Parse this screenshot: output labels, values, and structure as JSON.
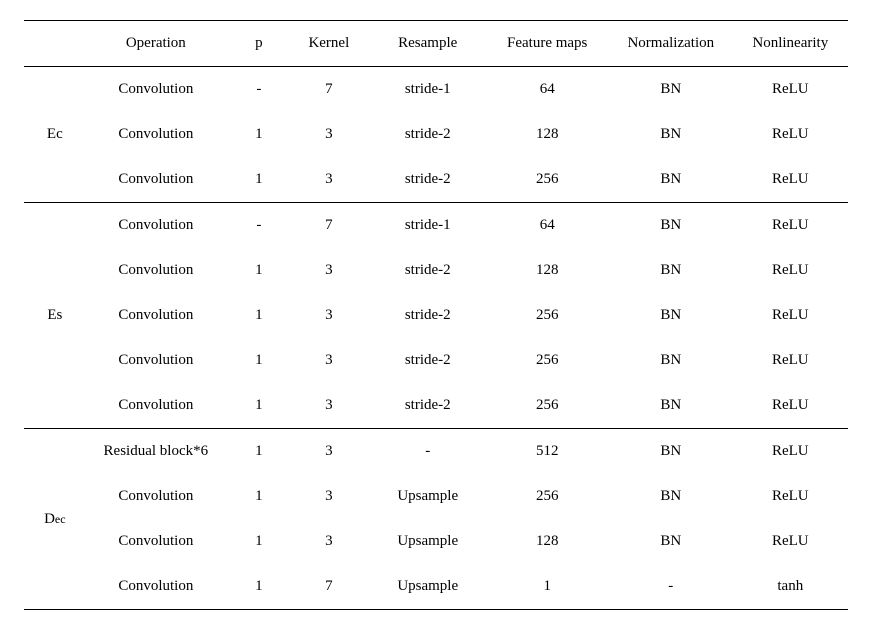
{
  "table": {
    "columns": [
      "",
      "Operation",
      "p",
      "Kernel",
      "Resample",
      "Feature maps",
      "Normalization",
      "Nonlinearity"
    ],
    "column_widths_pct": [
      7,
      18,
      7,
      10,
      14,
      15,
      15,
      14
    ],
    "font_family": "Times New Roman",
    "font_size_pt": 15,
    "text_color": "#000000",
    "background_color": "#ffffff",
    "border_color": "#000000",
    "sections": [
      {
        "label_plain": "Ec",
        "rows": [
          [
            "Convolution",
            "-",
            "7",
            "stride-1",
            "64",
            "BN",
            "ReLU"
          ],
          [
            "Convolution",
            "1",
            "3",
            "stride-2",
            "128",
            "BN",
            "ReLU"
          ],
          [
            "Convolution",
            "1",
            "3",
            "stride-2",
            "256",
            "BN",
            "ReLU"
          ]
        ]
      },
      {
        "label_plain": "Es",
        "rows": [
          [
            "Convolution",
            "-",
            "7",
            "stride-1",
            "64",
            "BN",
            "ReLU"
          ],
          [
            "Convolution",
            "1",
            "3",
            "stride-2",
            "128",
            "BN",
            "ReLU"
          ],
          [
            "Convolution",
            "1",
            "3",
            "stride-2",
            "256",
            "BN",
            "ReLU"
          ],
          [
            "Convolution",
            "1",
            "3",
            "stride-2",
            "256",
            "BN",
            "ReLU"
          ],
          [
            "Convolution",
            "1",
            "3",
            "stride-2",
            "256",
            "BN",
            "ReLU"
          ]
        ]
      },
      {
        "label_plain": "Dec",
        "rows": [
          [
            "Residual block*6",
            "1",
            "3",
            "-",
            "512",
            "BN",
            "ReLU"
          ],
          [
            "Convolution",
            "1",
            "3",
            "Upsample",
            "256",
            "BN",
            "ReLU"
          ],
          [
            "Convolution",
            "1",
            "3",
            "Upsample",
            "128",
            "BN",
            "ReLU"
          ],
          [
            "Convolution",
            "1",
            "7",
            "Upsample",
            "1",
            "-",
            "tanh"
          ]
        ]
      }
    ]
  }
}
